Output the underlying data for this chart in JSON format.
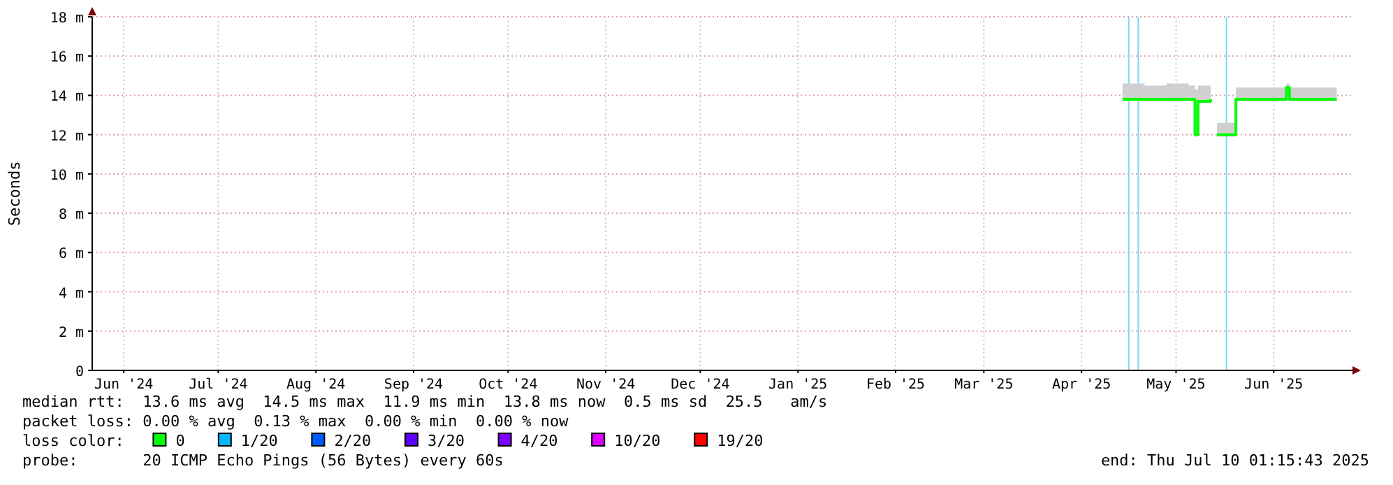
{
  "chart_data": {
    "type": "line",
    "ylabel": "Seconds",
    "xlim": [
      "2024-06-05",
      "2025-07-10"
    ],
    "xticks": [
      {
        "value": "2024-06-15",
        "label": "Jun '24"
      },
      {
        "value": "2024-07-15",
        "label": "Jul '24"
      },
      {
        "value": "2024-08-15",
        "label": "Aug '24"
      },
      {
        "value": "2024-09-15",
        "label": "Sep '24"
      },
      {
        "value": "2024-10-15",
        "label": "Oct '24"
      },
      {
        "value": "2024-11-15",
        "label": "Nov '24"
      },
      {
        "value": "2024-12-15",
        "label": "Dec '24"
      },
      {
        "value": "2025-01-15",
        "label": "Jan '25"
      },
      {
        "value": "2025-02-15",
        "label": "Feb '25"
      },
      {
        "value": "2025-03-15",
        "label": "Mar '25"
      },
      {
        "value": "2025-04-15",
        "label": "Apr '25"
      },
      {
        "value": "2025-05-15",
        "label": "May '25"
      },
      {
        "value": "2025-06-15",
        "label": "Jun '25"
      }
    ],
    "ylim": [
      0,
      18
    ],
    "yticks": [
      0,
      {
        "value": 2,
        "label": "2 m"
      },
      {
        "value": 4,
        "label": "4 m"
      },
      {
        "value": 6,
        "label": "6 m"
      },
      {
        "value": 8,
        "label": "8 m"
      },
      {
        "value": 10,
        "label": "10 m"
      },
      {
        "value": 12,
        "label": "12 m"
      },
      {
        "value": 14,
        "label": "14 m"
      },
      {
        "value": 16,
        "label": "16 m"
      },
      {
        "value": 18,
        "label": "18 m"
      }
    ],
    "grid": true,
    "legend": "bottom",
    "legend_title": "loss color:",
    "marker": "none",
    "line_style": "solid",
    "series": [
      {
        "name": "0",
        "color": "#00ff00",
        "x": [
          "2025-04-28",
          "2025-05-05",
          "2025-05-12",
          "2025-05-16",
          "2025-05-19",
          "2025-05-21",
          "2025-05-22",
          "2025-05-26",
          "2025-05-27",
          "2025-05-28",
          "2025-06-02",
          "2025-06-03",
          "2025-06-10",
          "2025-06-19",
          "2025-06-20",
          "2025-06-30",
          "2025-07-05"
        ],
        "values": [
          13.8,
          13.8,
          13.8,
          13.8,
          13.8,
          12.0,
          13.7,
          13.8,
          null,
          12.0,
          12.0,
          13.8,
          13.8,
          14.4,
          13.8,
          13.8,
          13.8
        ],
        "lower": [
          13.7,
          13.7,
          13.7,
          13.7,
          13.7,
          11.9,
          13.6,
          13.7,
          null,
          11.9,
          11.9,
          13.7,
          13.7,
          13.7,
          13.7,
          13.7,
          13.7
        ],
        "upper": [
          14.6,
          14.5,
          14.6,
          14.6,
          14.5,
          14.3,
          14.5,
          14.5,
          null,
          12.6,
          12.6,
          14.4,
          14.4,
          14.6,
          14.4,
          14.4,
          14.4
        ]
      },
      {
        "name": "1/20",
        "color": "#00b8ff"
      },
      {
        "name": "2/20",
        "color": "#0059ff"
      },
      {
        "name": "3/20",
        "color": "#5e00ff"
      },
      {
        "name": "4/20",
        "color": "#7e00ff"
      },
      {
        "name": "10/20",
        "color": "#dd00ff"
      },
      {
        "name": "19/20",
        "color": "#ff0000"
      }
    ],
    "ref_lines": [
      {
        "axis": "x",
        "value": "2025-04-30",
        "color": "#80d8f8"
      },
      {
        "axis": "x",
        "value": "2025-05-03",
        "color": "#80d8f8"
      },
      {
        "axis": "x",
        "value": "2025-05-31",
        "color": "#80d8f8"
      }
    ],
    "annotations": [
      "median rtt:  13.6 ms avg  14.5 ms max  11.9 ms min  13.8 ms now  0.5 ms sd  25.5   am/s",
      "packet loss: 0.00 % avg  0.13 % max  0.00 % min  0.00 % now",
      "probe:       20 ICMP Echo Pings (56 Bytes) every 60s",
      "end: Thu Jul 10 01:15:43 2025"
    ]
  }
}
